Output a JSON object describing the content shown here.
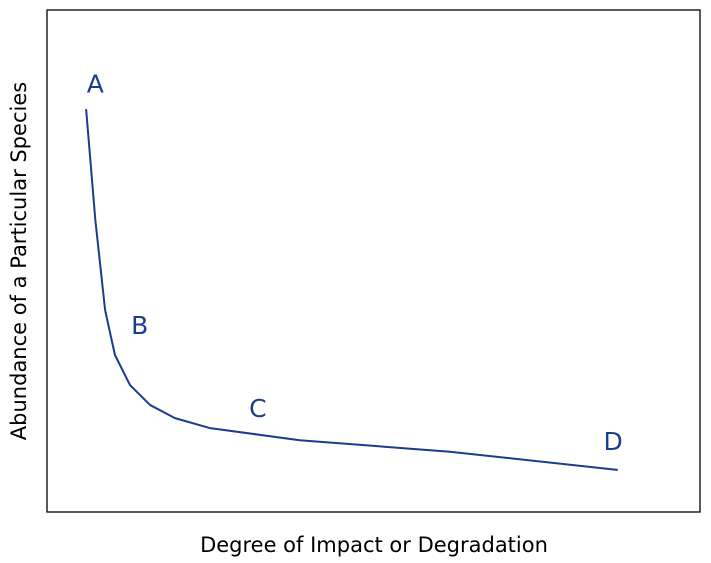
{
  "chart_data": {
    "type": "line",
    "x_label": "Degree of Impact or Degradation",
    "y_label": "Abundance of a Particular Species",
    "x": [
      6.0,
      7.4,
      8.9,
      10.4,
      12.7,
      15.8,
      19.6,
      25.0,
      38.7,
      61.7,
      87.3
    ],
    "series": [
      {
        "color": "#1c3c8e",
        "values": [
          80.1,
          58.2,
          40.2,
          31.3,
          25.3,
          21.3,
          18.7,
          16.7,
          14.3,
          12.0,
          8.4
        ]
      }
    ],
    "annotations": [
      {
        "text": "A",
        "x": 7.4,
        "y": 85
      },
      {
        "text": "B",
        "x": 14.2,
        "y": 36.9
      },
      {
        "text": "C",
        "x": 32.3,
        "y": 20.3
      },
      {
        "text": "D",
        "x": 86.7,
        "y": 13.7
      }
    ],
    "xlim": [
      0,
      100
    ],
    "ylim": [
      0,
      100
    ]
  }
}
